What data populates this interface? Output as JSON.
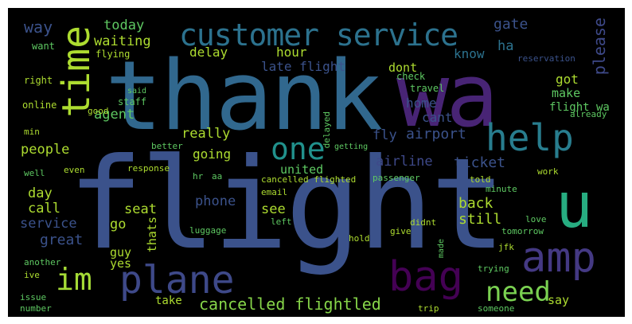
{
  "image": {
    "type": "word cloud",
    "background_color": "#000000",
    "palette": [
      "#440154",
      "#3b528b",
      "#21918c",
      "#5ec962",
      "#fde725"
    ],
    "words": {
      "flight": "flight",
      "thank": "thank",
      "wa": "wa",
      "customer_service": "customer service",
      "time": "time",
      "help": "help",
      "u": "u",
      "one": "one",
      "amp": "amp",
      "bag": "bag",
      "plane": "plane",
      "im": "im",
      "need": "need",
      "cancelled_flightled": "cancelled flightled",
      "way": "way",
      "today": "today",
      "waiting": "waiting",
      "gate": "gate",
      "ha": "ha",
      "please": "please",
      "know": "know",
      "delay": "delay",
      "hour": "hour",
      "late_flight": "late flight",
      "dont": "dont",
      "got": "got",
      "make": "make",
      "flight_wa": "flight wa",
      "home": "home",
      "cant": "cant",
      "fly": "fly",
      "airport": "airport",
      "agent": "agent",
      "really": "really",
      "going": "going",
      "united": "united",
      "people": "people",
      "airline": "airline",
      "ticket": "ticket",
      "day": "day",
      "call": "call",
      "phone": "phone",
      "see": "see",
      "back": "back",
      "still": "still",
      "service": "service",
      "seat": "seat",
      "go": "go",
      "great": "great",
      "thats": "thats",
      "guy": "guy",
      "yes": "yes",
      "take": "take",
      "say": "say",
      "travel": "travel",
      "check": "check",
      "staff": "staff",
      "flying": "flying",
      "want": "want",
      "right": "right",
      "online": "online",
      "good": "good",
      "delayed": "delayed",
      "fly2": "fly",
      "better": "better",
      "response": "response",
      "cancelled_flighted": "cancelled flighted",
      "passenger": "passenger",
      "told": "told",
      "work": "work",
      "love": "love",
      "tomorrow": "tomorrow",
      "hr": "hr",
      "aa": "aa",
      "even": "even",
      "well": "well",
      "email": "email",
      "left": "left",
      "didnt": "didnt",
      "give": "give",
      "hold": "hold",
      "minute": "minute",
      "jfk": "jfk",
      "trying": "trying",
      "luggage": "luggage",
      "another": "another",
      "ive": "ive",
      "issue": "issue",
      "number": "number",
      "trip": "trip",
      "someone": "someone",
      "already": "already",
      "reservation": "reservation",
      "min": "min",
      "said": "said",
      "made": "made",
      "getting": "getting"
    }
  }
}
